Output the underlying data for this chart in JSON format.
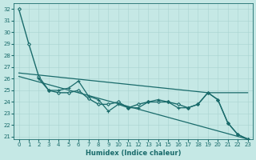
{
  "xlabel": "Humidex (Indice chaleur)",
  "background_color": "#c5e8e5",
  "line_color": "#1a6b6b",
  "grid_color": "#aad4d0",
  "xlim": [
    -0.5,
    23.5
  ],
  "ylim": [
    20.8,
    32.5
  ],
  "yticks": [
    21,
    22,
    23,
    24,
    25,
    26,
    27,
    28,
    29,
    30,
    31,
    32
  ],
  "xticks": [
    0,
    1,
    2,
    3,
    4,
    5,
    6,
    7,
    8,
    9,
    10,
    11,
    12,
    13,
    14,
    15,
    16,
    17,
    18,
    19,
    20,
    21,
    22,
    23
  ],
  "series": [
    {
      "x": [
        0,
        1,
        2,
        3,
        4,
        5,
        6,
        7,
        8,
        9,
        10,
        11,
        12,
        13,
        14,
        15,
        16,
        17,
        18,
        19,
        20,
        21,
        22,
        23
      ],
      "y": [
        32,
        29,
        26.2,
        25.0,
        24.8,
        24.8,
        25.0,
        24.3,
        23.8,
        23.8,
        24.0,
        23.5,
        23.8,
        24.0,
        24.0,
        24.0,
        23.8,
        23.5,
        23.8,
        24.8,
        24.2,
        22.2,
        21.2,
        20.8
      ],
      "marker": "D",
      "markersize": 2.0,
      "linewidth": 1.0
    },
    {
      "x": [
        2,
        3,
        4,
        5,
        6,
        7,
        8,
        9,
        10,
        11,
        12,
        13,
        14,
        15,
        16,
        17,
        18,
        19,
        20,
        21,
        22,
        23
      ],
      "y": [
        26.0,
        25.0,
        25.0,
        25.2,
        25.8,
        24.5,
        24.2,
        23.2,
        23.8,
        23.5,
        23.5,
        24.0,
        24.2,
        24.0,
        23.5,
        23.5,
        23.8,
        24.8,
        24.2,
        22.2,
        21.2,
        20.8
      ],
      "marker": "+",
      "markersize": 3.0,
      "linewidth": 0.9
    },
    {
      "x": [
        0,
        23
      ],
      "y": [
        26.2,
        20.8
      ],
      "marker": null,
      "markersize": 0,
      "linewidth": 0.9
    },
    {
      "x": [
        0,
        19,
        23
      ],
      "y": [
        26.5,
        24.8,
        24.8
      ],
      "marker": null,
      "markersize": 0,
      "linewidth": 0.9
    }
  ]
}
